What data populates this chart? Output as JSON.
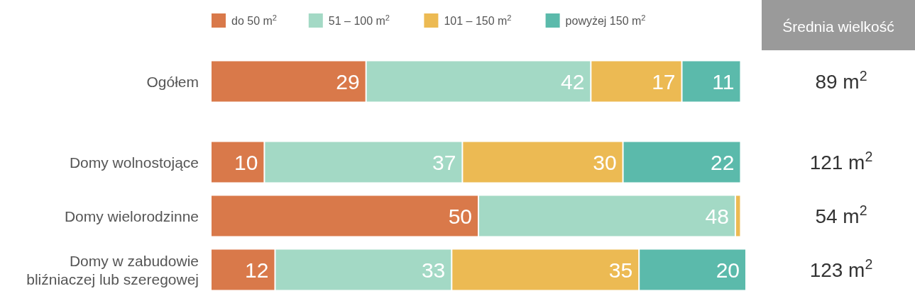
{
  "chart_data": {
    "type": "bar",
    "orientation": "horizontal",
    "stacked": true,
    "legend": "top",
    "categories": [
      "Ogółem",
      null,
      "Domy wolnostojące",
      "Domy wielorodzinne",
      "Domy w zabudowie bliźniaczej lub szeregowej"
    ],
    "series": [
      {
        "name": "do 50 m$^{2}$",
        "color": "#d9794a",
        "values": [
          29,
          null,
          10,
          50,
          12
        ],
        "value_labels": [
          "29",
          null,
          "10",
          "50",
          "12"
        ]
      },
      {
        "name": "51 – 100 m$^{2}$",
        "color": "#a3d9c5",
        "values": [
          42,
          null,
          37,
          48,
          33
        ],
        "value_labels": [
          "42",
          null,
          "37",
          "48",
          "33"
        ]
      },
      {
        "name": "101 – 150 m$^{2}$",
        "color": "#ecba53",
        "values": [
          17,
          null,
          30,
          1,
          35
        ],
        "value_labels": [
          "17",
          null,
          "30",
          null,
          "35"
        ]
      },
      {
        "name": "powyżej 150 m$^{2}$",
        "color": "#5bbaab",
        "values": [
          11,
          null,
          22,
          null,
          20
        ],
        "value_labels": [
          "11",
          null,
          "22",
          null,
          "20"
        ]
      }
    ],
    "annotations": [
      "Średnia wielkość",
      "89 m$^{2}$",
      "121 m$^{2}$",
      "54 m$^{2}$",
      "123 m$^{2}$"
    ]
  }
}
